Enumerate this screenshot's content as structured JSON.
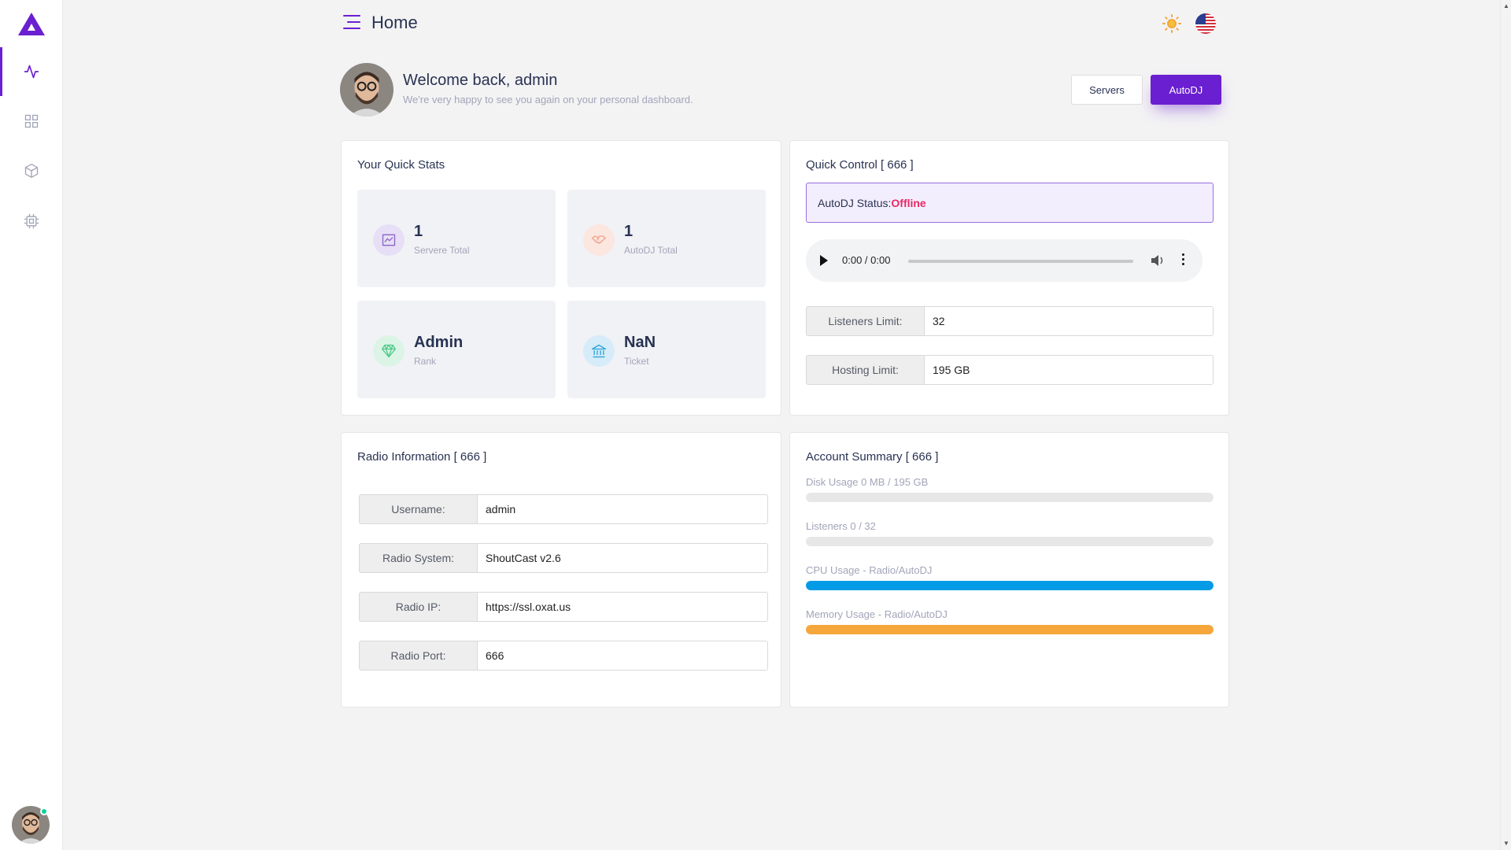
{
  "header": {
    "title": "Home"
  },
  "welcome": {
    "title": "Welcome back, admin",
    "subtitle": "We're very happy to see you again on your personal dashboard.",
    "btn_servers": "Servers",
    "btn_autodj": "AutoDJ"
  },
  "quick_stats": {
    "title": "Your Quick Stats",
    "items": [
      {
        "value": "1",
        "label": "Servere Total",
        "icon": "chart-icon",
        "color": "#8e63c8"
      },
      {
        "value": "1",
        "label": "AutoDJ Total",
        "icon": "handshake-icon",
        "color": "#f1a18b"
      },
      {
        "value": "Admin",
        "label": "Rank",
        "icon": "diamond-icon",
        "color": "#52c98a"
      },
      {
        "value": "NaN",
        "label": "Ticket",
        "icon": "bank-icon",
        "color": "#2aa3d8"
      }
    ]
  },
  "quick_control": {
    "title": "Quick Control [ 666 ]",
    "status_label": "AutoDJ Status:",
    "status_value": "Offline",
    "player_time": "0:00 / 0:00",
    "listeners_label": "Listeners Limit:",
    "listeners_value": "32",
    "hosting_label": "Hosting Limit:",
    "hosting_value": "195 GB"
  },
  "radio_info": {
    "title": "Radio Information [ 666 ]",
    "rows": [
      {
        "label": "Username:",
        "value": "admin"
      },
      {
        "label": "Radio System:",
        "value": "ShoutCast v2.6"
      },
      {
        "label": "Radio IP:",
        "value": "https://ssl.oxat.us"
      },
      {
        "label": "Radio Port:",
        "value": "666"
      }
    ]
  },
  "account_summary": {
    "title": "Account Summary [ 666 ]",
    "items": [
      {
        "label": "Disk Usage 0 MB / 195 GB",
        "percent": 0,
        "color": "#e7e7e7"
      },
      {
        "label": "Listeners 0 / 32",
        "percent": 0,
        "color": "#e7e7e7"
      },
      {
        "label": "CPU Usage - Radio/AutoDJ",
        "percent": 100,
        "color": "#039be5"
      },
      {
        "label": "Memory Usage - Radio/AutoDJ",
        "percent": 100,
        "color": "#f5a73c"
      }
    ]
  },
  "colors": {
    "accent": "#6a1fd0",
    "offline": "#e62965"
  }
}
